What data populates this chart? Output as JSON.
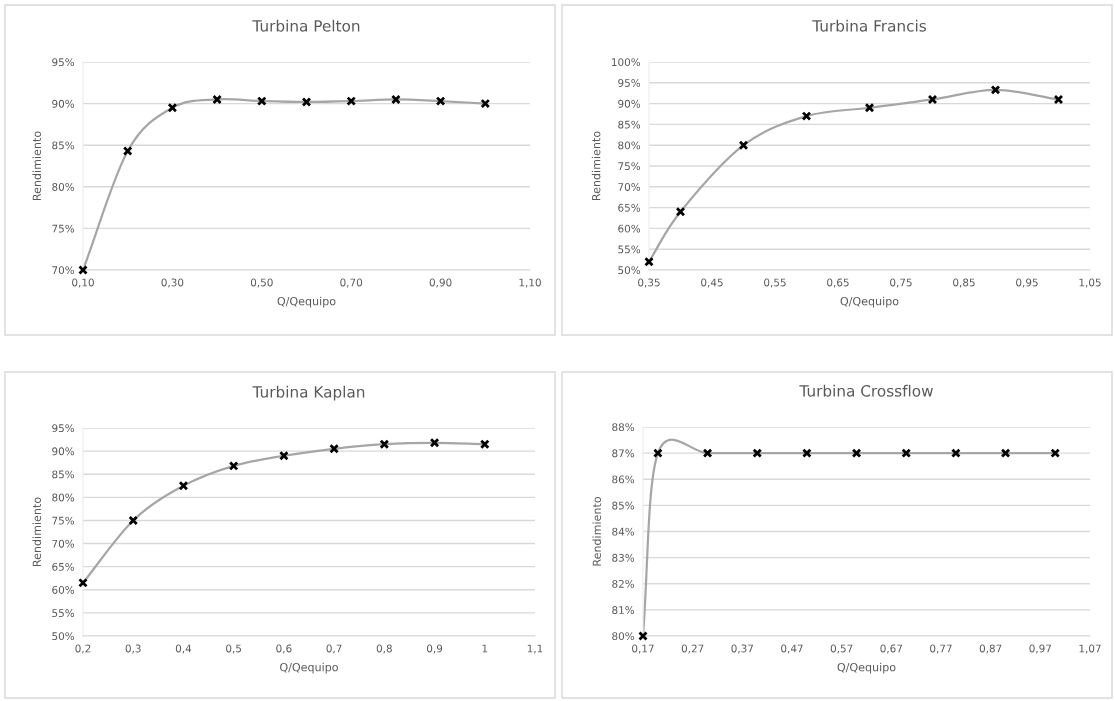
{
  "chart_data": [
    {
      "type": "line",
      "title": "Turbina Pelton",
      "xlabel": "Q/Qequipo",
      "ylabel": "Rendimiento",
      "x": [
        0.1,
        0.2,
        0.3,
        0.4,
        0.5,
        0.6,
        0.7,
        0.8,
        0.9,
        1.0
      ],
      "series": [
        {
          "color": "#a6a6a6",
          "values": [
            70,
            84.3,
            89.5,
            90.5,
            90.3,
            90.2,
            90.3,
            90.5,
            90.3,
            90.0
          ]
        }
      ],
      "xlim": [
        0.1,
        1.1
      ],
      "xticks": [
        {
          "value": 0.1,
          "label": "0,10"
        },
        {
          "value": 0.3,
          "label": "0,30"
        },
        {
          "value": 0.5,
          "label": "0,50"
        },
        {
          "value": 0.7,
          "label": "0,70"
        },
        {
          "value": 0.9,
          "label": "0,90"
        },
        {
          "value": 1.1,
          "label": "1,10"
        }
      ],
      "ylim": [
        70,
        95
      ],
      "yticks": [
        {
          "value": 70,
          "label": "70%"
        },
        {
          "value": 75,
          "label": "75%"
        },
        {
          "value": 80,
          "label": "80%"
        },
        {
          "value": 85,
          "label": "85%"
        },
        {
          "value": 90,
          "label": "90%"
        },
        {
          "value": 95,
          "label": "95%"
        }
      ],
      "grid": "y",
      "marker": "cross",
      "line_style": "solid"
    },
    {
      "type": "line",
      "title": "Turbina Francis",
      "xlabel": "Q/Qequipo",
      "ylabel": "Rendimiento",
      "x": [
        0.35,
        0.4,
        0.5,
        0.6,
        0.7,
        0.8,
        0.9,
        1.0
      ],
      "series": [
        {
          "color": "#a6a6a6",
          "values": [
            52,
            64,
            80,
            87,
            89,
            91,
            93.3,
            91
          ]
        }
      ],
      "xlim": [
        0.35,
        1.05
      ],
      "xticks": [
        {
          "value": 0.35,
          "label": "0,35"
        },
        {
          "value": 0.45,
          "label": "0,45"
        },
        {
          "value": 0.55,
          "label": "0,55"
        },
        {
          "value": 0.65,
          "label": "0,65"
        },
        {
          "value": 0.75,
          "label": "0,75"
        },
        {
          "value": 0.85,
          "label": "0,85"
        },
        {
          "value": 0.95,
          "label": "0,95"
        },
        {
          "value": 1.05,
          "label": "1,05"
        }
      ],
      "ylim": [
        50,
        100
      ],
      "yticks": [
        {
          "value": 50,
          "label": "50%"
        },
        {
          "value": 55,
          "label": "55%"
        },
        {
          "value": 60,
          "label": "60%"
        },
        {
          "value": 65,
          "label": "65%"
        },
        {
          "value": 70,
          "label": "70%"
        },
        {
          "value": 75,
          "label": "75%"
        },
        {
          "value": 80,
          "label": "80%"
        },
        {
          "value": 85,
          "label": "85%"
        },
        {
          "value": 90,
          "label": "90%"
        },
        {
          "value": 95,
          "label": "95%"
        },
        {
          "value": 100,
          "label": "100%"
        }
      ],
      "grid": "y",
      "marker": "cross",
      "line_style": "solid"
    },
    {
      "type": "line",
      "title": "Turbina Kaplan",
      "xlabel": "Q/Qequipo",
      "ylabel": "Rendimiento",
      "x": [
        0.2,
        0.3,
        0.4,
        0.5,
        0.6,
        0.7,
        0.8,
        0.9,
        1.0
      ],
      "series": [
        {
          "color": "#a6a6a6",
          "values": [
            61.5,
            75,
            82.5,
            86.8,
            89,
            90.5,
            91.5,
            91.8,
            91.5
          ]
        }
      ],
      "xlim": [
        0.2,
        1.1
      ],
      "xticks": [
        {
          "value": 0.2,
          "label": "0,2"
        },
        {
          "value": 0.3,
          "label": "0,3"
        },
        {
          "value": 0.4,
          "label": "0,4"
        },
        {
          "value": 0.5,
          "label": "0,5"
        },
        {
          "value": 0.6,
          "label": "0,6"
        },
        {
          "value": 0.7,
          "label": "0,7"
        },
        {
          "value": 0.8,
          "label": "0,8"
        },
        {
          "value": 0.9,
          "label": "0,9"
        },
        1,
        {
          "value": 1.1,
          "label": "1,1"
        }
      ],
      "ylim": [
        50,
        95
      ],
      "yticks": [
        {
          "value": 50,
          "label": "50%"
        },
        {
          "value": 55,
          "label": "55%"
        },
        {
          "value": 60,
          "label": "60%"
        },
        {
          "value": 65,
          "label": "65%"
        },
        {
          "value": 70,
          "label": "70%"
        },
        {
          "value": 75,
          "label": "75%"
        },
        {
          "value": 80,
          "label": "80%"
        },
        {
          "value": 85,
          "label": "85%"
        },
        {
          "value": 90,
          "label": "90%"
        },
        {
          "value": 95,
          "label": "95%"
        }
      ],
      "grid": "y",
      "marker": "cross",
      "line_style": "solid"
    },
    {
      "type": "line",
      "title": "Turbina Crossflow",
      "xlabel": "Q/Qequipo",
      "ylabel": "Rendimiento",
      "x": [
        0.17,
        0.2,
        0.3,
        0.4,
        0.5,
        0.6,
        0.7,
        0.8,
        0.9,
        1.0
      ],
      "series": [
        {
          "color": "#a6a6a6",
          "values": [
            80,
            87,
            87,
            87,
            87,
            87,
            87,
            87,
            87,
            87
          ]
        }
      ],
      "xlim": [
        0.17,
        1.07
      ],
      "xticks": [
        {
          "value": 0.17,
          "label": "0,17"
        },
        {
          "value": 0.27,
          "label": "0,27"
        },
        {
          "value": 0.37,
          "label": "0,37"
        },
        {
          "value": 0.47,
          "label": "0,47"
        },
        {
          "value": 0.57,
          "label": "0,57"
        },
        {
          "value": 0.67,
          "label": "0,67"
        },
        {
          "value": 0.77,
          "label": "0,77"
        },
        {
          "value": 0.87,
          "label": "0,87"
        },
        {
          "value": 0.97,
          "label": "0,97"
        },
        {
          "value": 1.07,
          "label": "1,07"
        }
      ],
      "ylim": [
        80,
        88
      ],
      "yticks": [
        {
          "value": 80,
          "label": "80%"
        },
        {
          "value": 81,
          "label": "81%"
        },
        {
          "value": 82,
          "label": "82%"
        },
        {
          "value": 83,
          "label": "83%"
        },
        {
          "value": 84,
          "label": "84%"
        },
        {
          "value": 85,
          "label": "85%"
        },
        {
          "value": 86,
          "label": "86%"
        },
        {
          "value": 87,
          "label": "87%"
        },
        {
          "value": 88,
          "label": "88%"
        }
      ],
      "grid": "y",
      "marker": "cross",
      "line_style": "solid"
    }
  ]
}
